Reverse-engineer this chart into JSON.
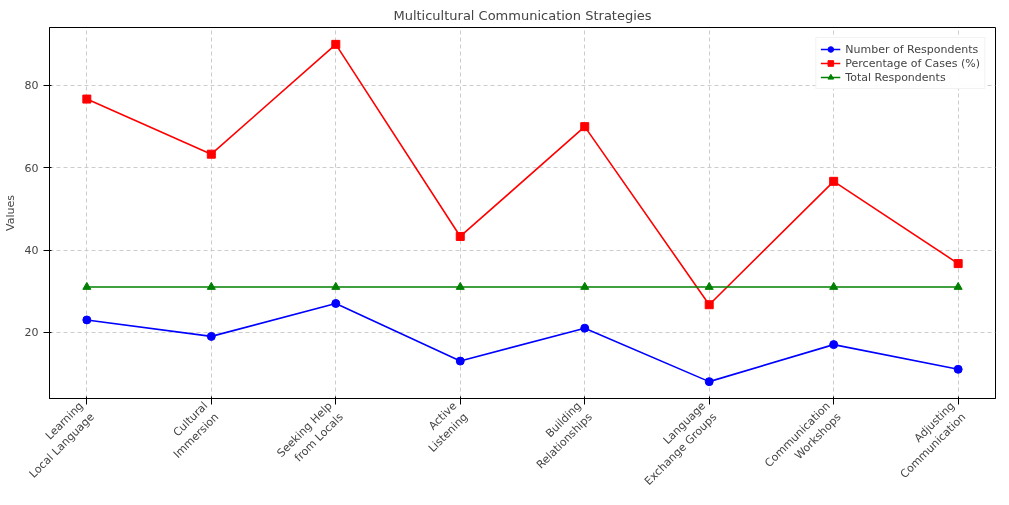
{
  "chart_data": {
    "type": "line",
    "title": "Multicultural Communication Strategies",
    "ylabel": "Values",
    "categories": [
      "Learning\nLocal Language",
      "Cultural\nImmersion",
      "Seeking Help\nfrom Locals",
      "Active\nListening",
      "Building\nRelationships",
      "Language\nExchange Groups",
      "Communication\nWorkshops",
      "Adjusting\nCommunication"
    ],
    "series": [
      {
        "name": "Number of Respondents",
        "color": "#0000ff",
        "marker": "circle",
        "values": [
          23,
          19,
          27,
          13,
          21,
          8,
          17,
          11
        ]
      },
      {
        "name": "Percentage of Cases (%)",
        "color": "#ff0000",
        "marker": "square",
        "values": [
          76.7,
          63.3,
          90,
          43.3,
          70,
          26.7,
          56.7,
          36.7
        ]
      },
      {
        "name": "Total Respondents",
        "color": "#008000",
        "marker": "triangle",
        "values": [
          31,
          31,
          31,
          31,
          31,
          31,
          31,
          31
        ]
      }
    ],
    "ylim": [
      3.9,
      94.1
    ],
    "yticks": [
      20,
      40,
      60,
      80
    ],
    "grid": true,
    "legend": "top right",
    "line_style": "solid"
  }
}
